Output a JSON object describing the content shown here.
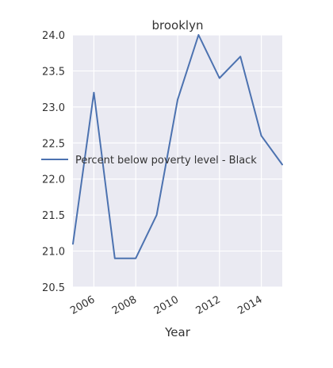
{
  "chart_data": {
    "type": "line",
    "title": "brooklyn",
    "xlabel": "Year",
    "ylabel": "",
    "xlim": [
      2005,
      2015
    ],
    "ylim": [
      20.5,
      24.0
    ],
    "xticks": [
      2006,
      2008,
      2010,
      2012,
      2014
    ],
    "xtick_labels": [
      "2006",
      "2008",
      "2010",
      "2012",
      "2014"
    ],
    "yticks": [
      20.5,
      21.0,
      21.5,
      22.0,
      22.5,
      23.0,
      23.5,
      24.0
    ],
    "ytick_labels": [
      "20.5",
      "21.0",
      "21.5",
      "22.0",
      "22.5",
      "23.0",
      "23.5",
      "24.0"
    ],
    "grid": true,
    "legend_position": "center",
    "series": [
      {
        "name": "Percent below poverty level - Black",
        "color": "#4c72b0",
        "x": [
          2005,
          2006,
          2007,
          2008,
          2009,
          2010,
          2011,
          2012,
          2013,
          2014,
          2015
        ],
        "y": [
          21.1,
          23.2,
          20.9,
          20.9,
          21.5,
          23.1,
          24.0,
          23.4,
          23.7,
          22.6,
          22.2
        ]
      }
    ]
  }
}
